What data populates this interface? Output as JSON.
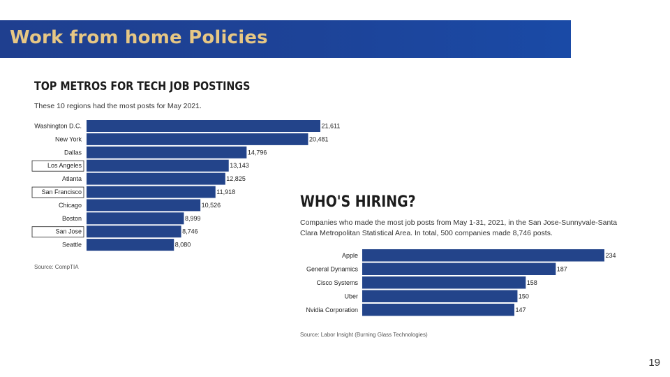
{
  "slide": {
    "title": "Work from home Policies",
    "page_number": "19"
  },
  "colors": {
    "bar": "#23448a",
    "title_bar": "#1f3f8f",
    "title_text": "#e7c784"
  },
  "chart_data": [
    {
      "type": "bar",
      "orientation": "horizontal",
      "title": "TOP METROS FOR TECH JOB POSTINGS",
      "subtitle": "These 10 regions had the most posts for May 2021.",
      "source": "Source: CompTIA",
      "categories": [
        "Washington D.C.",
        "New York",
        "Dallas",
        "Los Angeles",
        "Atlanta",
        "San Francisco",
        "Chicago",
        "Boston",
        "San Jose",
        "Seattle"
      ],
      "values": [
        21611,
        20481,
        14796,
        13143,
        12825,
        11918,
        10526,
        8999,
        8746,
        8080
      ],
      "value_labels": [
        "21,611",
        "20,481",
        "14,796",
        "13,143",
        "12,825",
        "11,918",
        "10,526",
        "8,999",
        "8,746",
        "8,080"
      ],
      "highlighted_categories": [
        "Los Angeles",
        "San Francisco",
        "San Jose"
      ]
    },
    {
      "type": "bar",
      "orientation": "horizontal",
      "title": "WHO'S HIRING?",
      "subtitle": "Companies who made the most job posts from May 1-31, 2021, in the San Jose-Sunnyvale-Santa Clara Metropolitan Statistical Area. In total, 500 companies made 8,746 posts.",
      "source": "Source: Labor Insight (Burning Glass Technologies)",
      "categories": [
        "Apple",
        "General Dynamics",
        "Cisco Systems",
        "Uber",
        "Nvidia Corporation"
      ],
      "values": [
        234,
        187,
        158,
        150,
        147
      ],
      "value_labels": [
        "234",
        "187",
        "158",
        "150",
        "147"
      ]
    }
  ]
}
